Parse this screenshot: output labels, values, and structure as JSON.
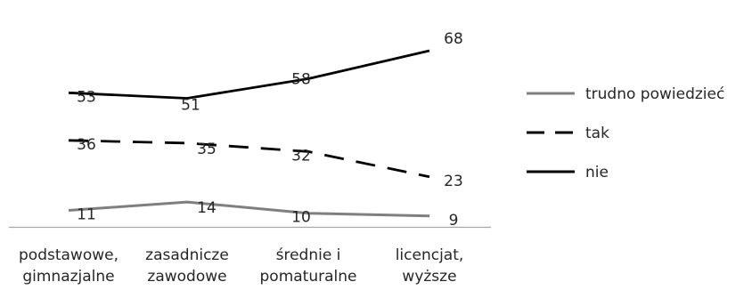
{
  "chart_data": {
    "type": "line",
    "categories": [
      [
        "podstawowe,",
        "gimnazjalne"
      ],
      [
        "zasadnicze",
        "zawodowe"
      ],
      [
        "średnie i",
        "pomaturalne"
      ],
      [
        "licencjat,",
        "wyższe"
      ]
    ],
    "series": [
      {
        "name": "trudno powiedzieć",
        "values": [
          11,
          14,
          10,
          9
        ],
        "color": "#7f7f7f",
        "dash": "solid",
        "labels": [
          "11",
          "14",
          "10",
          "9"
        ]
      },
      {
        "name": "tak",
        "values": [
          36,
          35,
          32,
          23
        ],
        "color": "#000000",
        "dash": "dashed",
        "labels": [
          "36",
          "35",
          "32",
          "23"
        ]
      },
      {
        "name": "nie",
        "values": [
          53,
          51,
          58,
          68
        ],
        "color": "#000000",
        "dash": "solid",
        "labels": [
          "53",
          "51",
          "58",
          "68"
        ]
      }
    ],
    "legend_position": "right",
    "grid": false,
    "ylim": [
      0,
      70
    ],
    "title": "",
    "xlabel": "",
    "ylabel": ""
  }
}
